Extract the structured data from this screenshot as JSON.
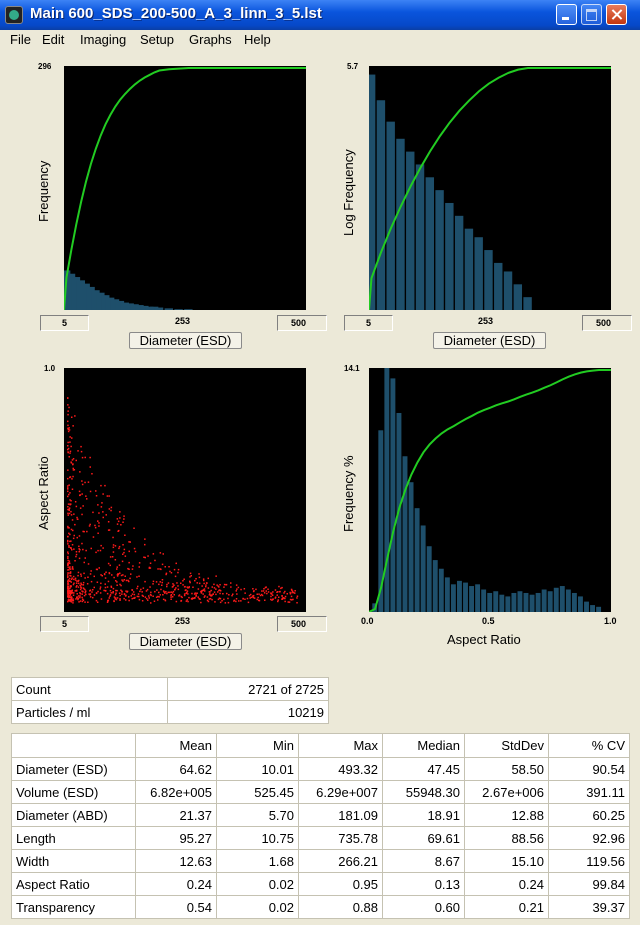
{
  "window": {
    "title": "Main  600_SDS_200-500_A_3_linn_3_5.lst"
  },
  "menu": [
    "File",
    "Edit",
    "Imaging",
    "Setup",
    "Graphs",
    "Help"
  ],
  "colors": {
    "histogram": "#1e4f6b",
    "cumulative": "#22cc22",
    "scatter": "#ff1a1a",
    "plot_bg": "#000000"
  },
  "plots": {
    "freq": {
      "ylabel": "Frequency",
      "ymax": "296",
      "xmin": "5",
      "xmid": "253",
      "xmax": "500",
      "xlabel": "Diameter (ESD)"
    },
    "logfreq": {
      "ylabel": "Log Frequency",
      "ymax": "5.7",
      "xmin": "5",
      "xmid": "253",
      "xmax": "500",
      "xlabel": "Diameter (ESD)"
    },
    "aspect": {
      "ylabel": "Aspect Ratio",
      "ymax": "1.0",
      "xmin": "5",
      "xmid": "253",
      "xmax": "500",
      "xlabel": "Diameter (ESD)"
    },
    "arfreq": {
      "ylabel": "Frequency %",
      "ymax": "14.1",
      "xmin": "0.0",
      "xmid": "0.5",
      "xmax": "1.0",
      "xlabel": "Aspect Ratio"
    }
  },
  "chart_data": [
    {
      "type": "bar",
      "ylabel": "Frequency",
      "xlabel": "Diameter (ESD)",
      "xlim": [
        5,
        500
      ],
      "ylim": [
        0,
        296
      ],
      "x": [
        10,
        20,
        30,
        40,
        50,
        60,
        70,
        80,
        90,
        100,
        110,
        120,
        130,
        140,
        150,
        160,
        170,
        180,
        190,
        200,
        220,
        240,
        260
      ],
      "values": [
        48,
        44,
        40,
        36,
        32,
        28,
        24,
        21,
        18,
        15,
        13,
        11,
        9,
        8,
        7,
        6,
        5,
        4,
        4,
        3,
        2,
        1,
        1
      ]
    },
    {
      "type": "bar",
      "ylabel": "Log Frequency",
      "xlabel": "Diameter (ESD)",
      "xlim": [
        5,
        500
      ],
      "ylim": [
        0,
        5.7
      ],
      "x": [
        10,
        30,
        50,
        70,
        90,
        110,
        130,
        150,
        170,
        190,
        210,
        230,
        250,
        270,
        290,
        310,
        330
      ],
      "values": [
        5.5,
        4.9,
        4.4,
        4.0,
        3.7,
        3.4,
        3.1,
        2.8,
        2.5,
        2.2,
        1.9,
        1.7,
        1.4,
        1.1,
        0.9,
        0.6,
        0.3
      ]
    },
    {
      "type": "scatter",
      "ylabel": "Aspect Ratio",
      "xlabel": "Diameter (ESD)",
      "xlim": [
        5,
        500
      ],
      "ylim": [
        0,
        1.0
      ]
    },
    {
      "type": "bar",
      "ylabel": "Frequency %",
      "xlabel": "Aspect Ratio",
      "xlim": [
        0,
        1
      ],
      "ylim": [
        0,
        14.1
      ],
      "x": [
        0.025,
        0.05,
        0.075,
        0.1,
        0.125,
        0.15,
        0.175,
        0.2,
        0.225,
        0.25,
        0.275,
        0.3,
        0.325,
        0.35,
        0.375,
        0.4,
        0.425,
        0.45,
        0.475,
        0.5,
        0.525,
        0.55,
        0.575,
        0.6,
        0.625,
        0.65,
        0.675,
        0.7,
        0.725,
        0.75,
        0.775,
        0.8,
        0.825,
        0.85,
        0.875,
        0.9,
        0.925,
        0.95
      ],
      "values": [
        0.5,
        10.5,
        14.1,
        13.5,
        11.5,
        9.0,
        7.5,
        6.0,
        5.0,
        3.8,
        3.0,
        2.5,
        2.0,
        1.6,
        1.8,
        1.7,
        1.5,
        1.6,
        1.3,
        1.1,
        1.2,
        1.0,
        0.9,
        1.1,
        1.2,
        1.1,
        1.0,
        1.1,
        1.3,
        1.2,
        1.4,
        1.5,
        1.3,
        1.1,
        0.9,
        0.6,
        0.4,
        0.3
      ]
    }
  ],
  "summary": {
    "rows": [
      {
        "label": "Count",
        "value": "2721  of  2725"
      },
      {
        "label": "Particles / ml",
        "value": "10219"
      }
    ]
  },
  "stats": {
    "headers": [
      "",
      "Mean",
      "Min",
      "Max",
      "Median",
      "StdDev",
      "% CV"
    ],
    "rows": [
      [
        "Diameter (ESD)",
        "64.62",
        "10.01",
        "493.32",
        "47.45",
        "58.50",
        "90.54"
      ],
      [
        "Volume (ESD)",
        "6.82e+005",
        "525.45",
        "6.29e+007",
        "55948.30",
        "2.67e+006",
        "391.11"
      ],
      [
        "Diameter (ABD)",
        "21.37",
        "5.70",
        "181.09",
        "18.91",
        "12.88",
        "60.25"
      ],
      [
        "Length",
        "95.27",
        "10.75",
        "735.78",
        "69.61",
        "88.56",
        "92.96"
      ],
      [
        "Width",
        "12.63",
        "1.68",
        "266.21",
        "8.67",
        "15.10",
        "119.56"
      ],
      [
        "Aspect Ratio",
        "0.24",
        "0.02",
        "0.95",
        "0.13",
        "0.24",
        "99.84"
      ],
      [
        "Transparency",
        "0.54",
        "0.02",
        "0.88",
        "0.60",
        "0.21",
        "39.37"
      ]
    ]
  }
}
